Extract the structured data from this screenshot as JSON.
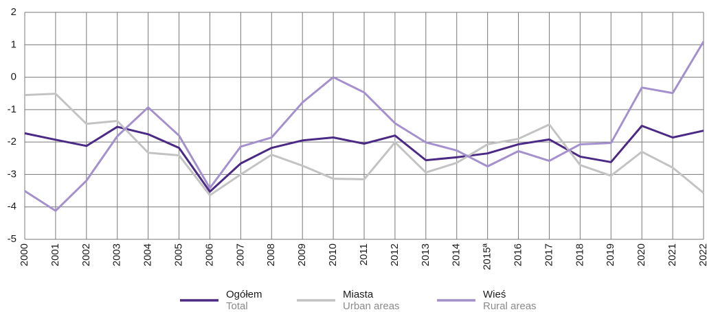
{
  "chart_data": {
    "type": "line",
    "categories": [
      "2000",
      "2001",
      "2002",
      "2003",
      "2004",
      "2005",
      "2006",
      "2007",
      "2008",
      "2009",
      "2010",
      "2011",
      "2012",
      "2013",
      "2014",
      "2015ª",
      "2016",
      "2017",
      "2018",
      "2019",
      "2020",
      "2021",
      "2022"
    ],
    "series": [
      {
        "name": "Ogółem",
        "name_en": "Total",
        "color": "#4b2a85",
        "values": [
          -1.73,
          -1.93,
          -2.12,
          -1.53,
          -1.76,
          -2.18,
          -3.53,
          -2.66,
          -2.18,
          -1.95,
          -1.86,
          -2.05,
          -1.8,
          -2.56,
          -2.47,
          -2.35,
          -2.07,
          -1.92,
          -2.45,
          -2.62,
          -1.5,
          -1.86,
          -1.65
        ]
      },
      {
        "name": "Miasta",
        "name_en": "Urban areas",
        "color": "#c3c3c3",
        "values": [
          -0.55,
          -0.51,
          -1.44,
          -1.35,
          -2.33,
          -2.41,
          -3.64,
          -3.0,
          -2.39,
          -2.73,
          -3.13,
          -3.15,
          -2.01,
          -2.94,
          -2.64,
          -2.07,
          -1.9,
          -1.46,
          -2.71,
          -3.04,
          -2.3,
          -2.79,
          -3.57
        ]
      },
      {
        "name": "Wieś",
        "name_en": "Rural areas",
        "color": "#a390cc",
        "values": [
          -3.51,
          -4.12,
          -3.19,
          -1.82,
          -0.93,
          -1.8,
          -3.42,
          -2.14,
          -1.86,
          -0.78,
          0,
          -0.47,
          -1.42,
          -2.01,
          -2.26,
          -2.75,
          -2.28,
          -2.58,
          -2.07,
          -2.03,
          -0.32,
          -0.49,
          1.1
        ]
      }
    ],
    "ylim": [
      -5,
      2
    ],
    "yticks": [
      -5,
      -4,
      -3,
      -2,
      -1,
      0,
      1,
      2
    ],
    "grid": true
  }
}
